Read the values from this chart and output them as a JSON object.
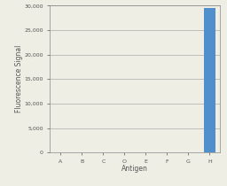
{
  "categories": [
    "A",
    "B",
    "C",
    "O",
    "E",
    "F",
    "G",
    "H"
  ],
  "values": [
    0,
    0,
    0,
    0,
    0,
    0,
    0,
    29500
  ],
  "bar_color_last": "#4f8fcc",
  "bar_color_others": "#4f8fcc",
  "xlabel": "Antigen",
  "ylabel": "Fluorescence Signal",
  "ylim": [
    0,
    30000
  ],
  "yticks": [
    0,
    5000,
    10000,
    15000,
    20000,
    25000,
    30000
  ],
  "ytick_labels": [
    "0",
    "5,000",
    "10,000",
    "15,000",
    "20,000",
    "25,000",
    "30,000"
  ],
  "background_color": "#eeeee5",
  "plot_bg_color": "#eeeee5",
  "grid_color": "#999999",
  "axis_color": "#888888",
  "tick_color": "#555555",
  "tick_fontsize": 4.5,
  "bar_width": 0.55,
  "xlabel_fontsize": 5.5,
  "ylabel_fontsize": 5.5
}
